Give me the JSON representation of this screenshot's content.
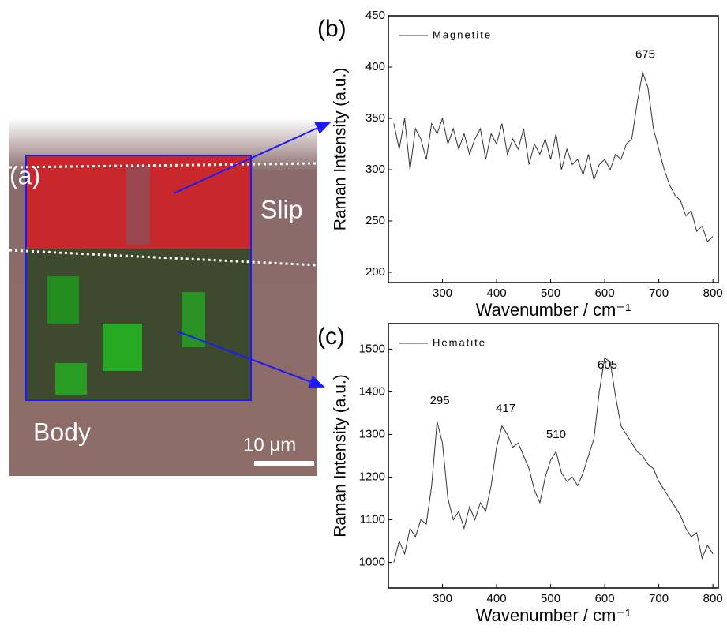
{
  "image_panel": {
    "label": "(a)",
    "region_top": "Slip",
    "region_bottom": "Body",
    "scale_bar": "10 μm"
  },
  "chart_data": [
    {
      "type": "line",
      "label": "(b)",
      "x_label": "Wavenumber / cm⁻¹",
      "y_label": "Raman Intensity (a.u.)",
      "xlim": [
        200,
        810
      ],
      "xticks": [
        300,
        400,
        500,
        600,
        700,
        800
      ],
      "ylim": [
        190,
        450
      ],
      "yticks": [
        200,
        250,
        300,
        350,
        400,
        450
      ],
      "x": [
        210,
        220,
        230,
        240,
        250,
        260,
        270,
        280,
        290,
        300,
        310,
        320,
        330,
        340,
        350,
        360,
        370,
        380,
        390,
        400,
        410,
        420,
        430,
        440,
        450,
        460,
        470,
        480,
        490,
        500,
        510,
        520,
        530,
        540,
        550,
        560,
        570,
        580,
        590,
        600,
        610,
        620,
        630,
        640,
        650,
        660,
        670,
        680,
        690,
        700,
        710,
        720,
        730,
        740,
        750,
        760,
        770,
        780,
        790,
        800
      ],
      "series": [
        {
          "name": "Magnetite",
          "color": "#333333",
          "values": [
            345,
            320,
            350,
            300,
            340,
            330,
            310,
            345,
            335,
            350,
            325,
            340,
            320,
            335,
            315,
            330,
            340,
            310,
            335,
            325,
            345,
            315,
            330,
            320,
            340,
            305,
            325,
            315,
            330,
            310,
            335,
            300,
            320,
            305,
            310,
            295,
            315,
            290,
            305,
            310,
            300,
            315,
            310,
            325,
            330,
            365,
            395,
            380,
            340,
            320,
            300,
            285,
            275,
            270,
            255,
            260,
            240,
            245,
            230,
            235
          ]
        }
      ],
      "annotations": [
        {
          "text": "675",
          "x": 675,
          "y": 412
        }
      ]
    },
    {
      "type": "line",
      "label": "(c)",
      "x_label": "Wavenumber / cm⁻¹",
      "y_label": "Raman Intensity (a.u.)",
      "xlim": [
        200,
        810
      ],
      "xticks": [
        300,
        400,
        500,
        600,
        700,
        800
      ],
      "ylim": [
        940,
        1560
      ],
      "yticks": [
        1000,
        1100,
        1200,
        1300,
        1400,
        1500
      ],
      "x": [
        210,
        220,
        230,
        240,
        250,
        260,
        270,
        280,
        290,
        300,
        310,
        320,
        330,
        340,
        350,
        360,
        370,
        380,
        390,
        400,
        410,
        420,
        430,
        440,
        450,
        460,
        470,
        480,
        490,
        500,
        510,
        520,
        530,
        540,
        550,
        560,
        570,
        580,
        590,
        600,
        610,
        620,
        630,
        640,
        650,
        660,
        670,
        680,
        690,
        700,
        710,
        720,
        730,
        740,
        750,
        760,
        770,
        780,
        790,
        800
      ],
      "series": [
        {
          "name": "Hematite",
          "color": "#333333",
          "values": [
            1000,
            1050,
            1020,
            1080,
            1060,
            1100,
            1090,
            1180,
            1330,
            1280,
            1150,
            1100,
            1120,
            1080,
            1130,
            1100,
            1140,
            1120,
            1180,
            1270,
            1320,
            1300,
            1270,
            1280,
            1250,
            1220,
            1170,
            1140,
            1200,
            1240,
            1260,
            1210,
            1190,
            1200,
            1180,
            1210,
            1250,
            1290,
            1400,
            1480,
            1470,
            1390,
            1320,
            1300,
            1280,
            1260,
            1250,
            1230,
            1220,
            1190,
            1170,
            1150,
            1130,
            1110,
            1080,
            1060,
            1070,
            1010,
            1040,
            1020
          ]
        }
      ],
      "annotations": [
        {
          "text": "295",
          "x": 295,
          "y": 1379
        },
        {
          "text": "417",
          "x": 417,
          "y": 1360
        },
        {
          "text": "510",
          "x": 510,
          "y": 1299
        },
        {
          "text": "605",
          "x": 605,
          "y": 1462
        }
      ]
    }
  ]
}
